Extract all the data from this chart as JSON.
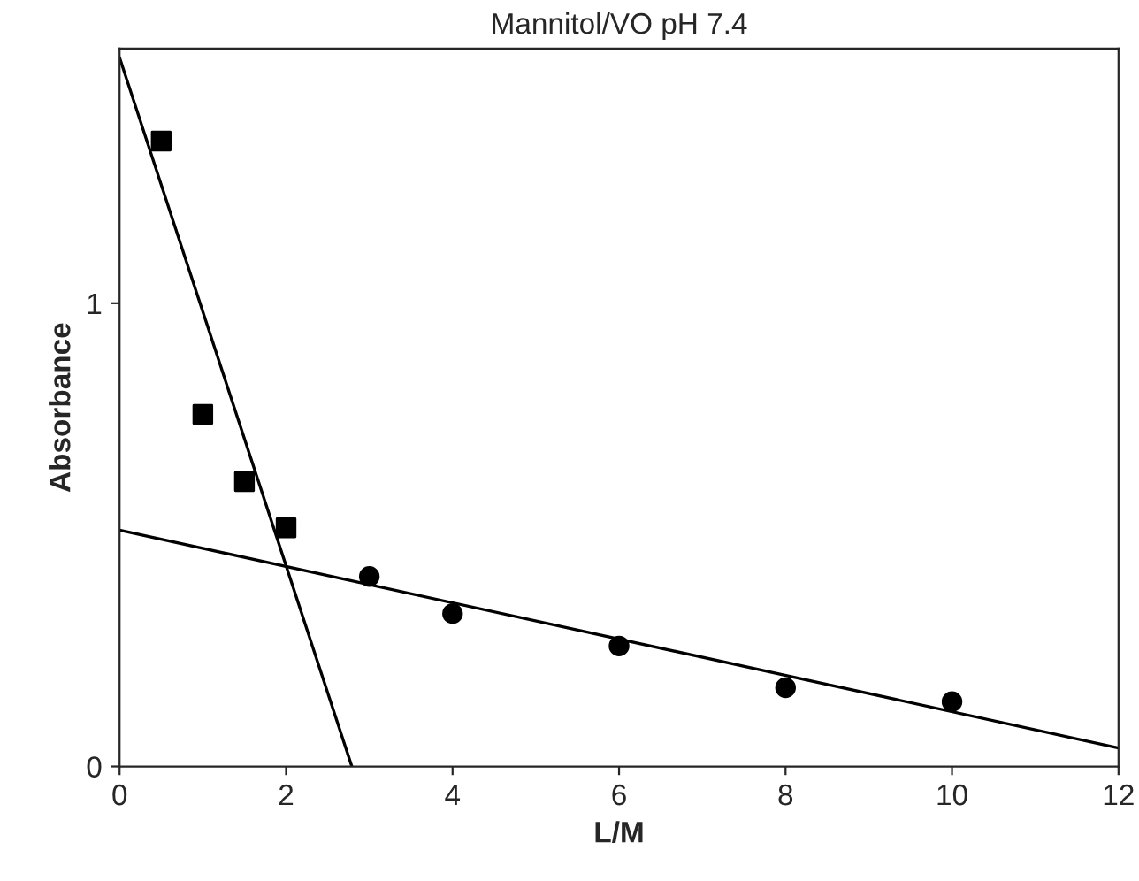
{
  "chart_data": {
    "type": "scatter",
    "title": "Mannitol/VO pH 7.4",
    "xlabel": "L/M",
    "ylabel": "Absorbance",
    "series": [
      {
        "marker": "square",
        "color": "#000000",
        "x": [
          0.5,
          1,
          1.5,
          2
        ],
        "values": [
          1.35,
          0.76,
          0.615,
          0.515
        ]
      },
      {
        "marker": "circle",
        "color": "#000000",
        "x": [
          3,
          4,
          6,
          8,
          10
        ],
        "values": [
          0.41,
          0.33,
          0.26,
          0.17,
          0.14
        ]
      },
      {
        "type": "line",
        "marker": "none",
        "color": "#000000",
        "x": [
          0,
          2.79
        ],
        "values": [
          1.53,
          0
        ]
      },
      {
        "type": "line",
        "marker": "none",
        "color": "#000000",
        "x": [
          0,
          12
        ],
        "values": [
          0.51,
          0.04
        ]
      }
    ],
    "xlim": [
      0,
      12
    ],
    "ylim": [
      0,
      1.55
    ],
    "xticks": [
      0,
      2,
      4,
      6,
      8,
      10,
      12
    ],
    "yticks": [
      0,
      1
    ],
    "grid": false,
    "legend": false
  }
}
